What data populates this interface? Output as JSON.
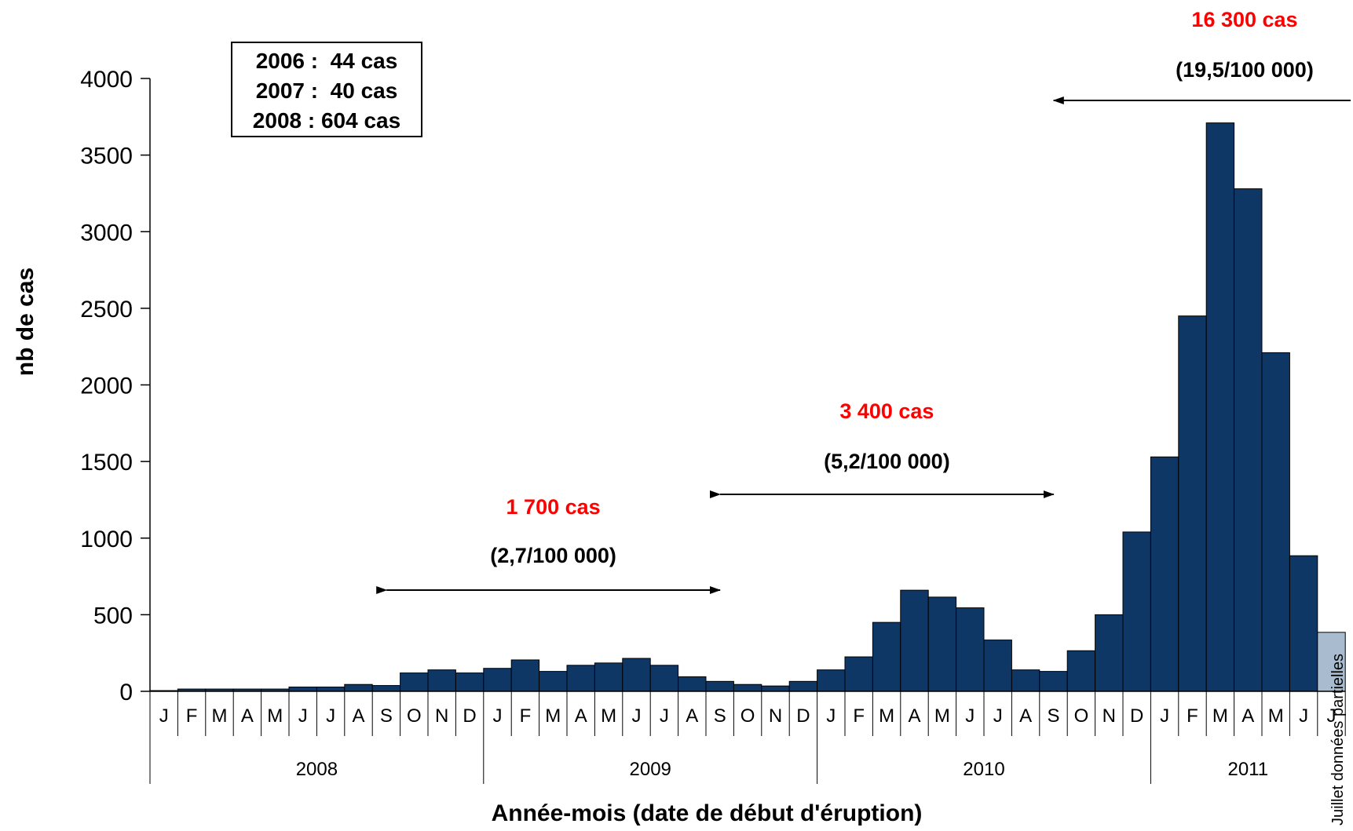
{
  "chart_data": {
    "type": "bar",
    "title": "",
    "xlabel": "Année-mois (date de début d'éruption)",
    "ylabel": "nb de cas",
    "ylim": [
      0,
      4000
    ],
    "yticks": [
      "0",
      "500",
      "1000",
      "1500",
      "2000",
      "2500",
      "3000",
      "3500",
      "4000"
    ],
    "grid": false,
    "bar_color": "#0f3766",
    "partial_bar_color": "#a9bccf",
    "annotation_red": "#ff0000",
    "years": [
      "2008",
      "2009",
      "2010",
      "2011"
    ],
    "categories": [
      "J",
      "F",
      "M",
      "A",
      "M",
      "J",
      "J",
      "A",
      "S",
      "O",
      "N",
      "D",
      "J",
      "F",
      "M",
      "A",
      "M",
      "J",
      "J",
      "A",
      "S",
      "O",
      "N",
      "D",
      "J",
      "F",
      "M",
      "A",
      "M",
      "J",
      "J",
      "A",
      "S",
      "O",
      "N",
      "D",
      "J",
      "F",
      "M",
      "A",
      "M",
      "J",
      "J"
    ],
    "values": [
      5,
      15,
      15,
      15,
      15,
      28,
      28,
      45,
      38,
      120,
      140,
      120,
      150,
      205,
      130,
      170,
      185,
      215,
      170,
      95,
      65,
      45,
      35,
      65,
      140,
      225,
      450,
      660,
      615,
      545,
      335,
      140,
      130,
      265,
      500,
      1040,
      1530,
      2450,
      3710,
      3280,
      2210,
      885,
      385
    ],
    "partial_last_note": "Juillet données partielles",
    "annotations": [
      {
        "cases": "1 700 cas",
        "rate": "(2,7/100 000)",
        "from_index": 8,
        "to_index": 20
      },
      {
        "cases": "3 400 cas",
        "rate": "(5,2/100 000)",
        "from_index": 20,
        "to_index": 32
      },
      {
        "cases": "16 300 cas",
        "rate": "(19,5/100 000)",
        "from_index": 32,
        "to_index": 42
      }
    ],
    "history_box": [
      "2006 :  44 cas",
      "2007 :  40 cas",
      "2008 : 604 cas"
    ]
  }
}
